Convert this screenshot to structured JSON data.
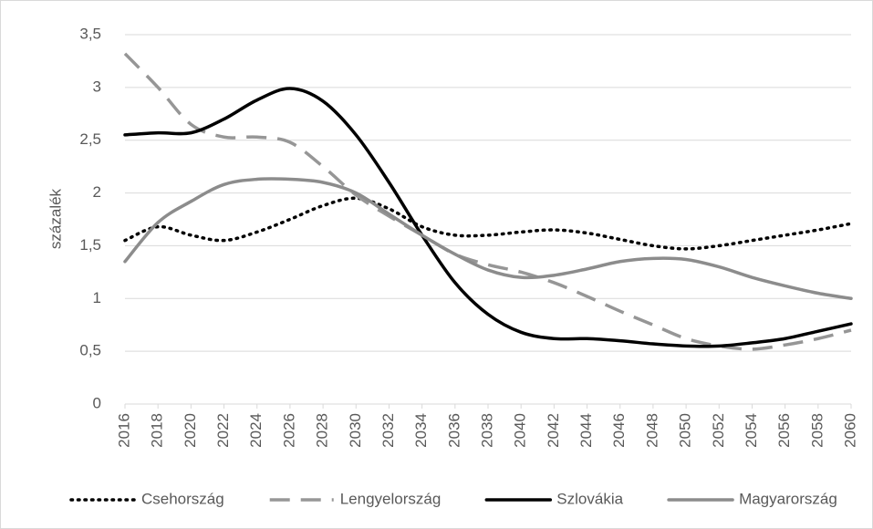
{
  "chart_data": {
    "type": "line",
    "y_label": "százalék",
    "x": [
      2016,
      2018,
      2020,
      2022,
      2024,
      2026,
      2028,
      2030,
      2032,
      2034,
      2036,
      2038,
      2040,
      2042,
      2044,
      2046,
      2048,
      2050,
      2052,
      2054,
      2056,
      2058,
      2060
    ],
    "xlim": [
      2016,
      2060
    ],
    "xticks": [
      2016,
      2018,
      2020,
      2022,
      2024,
      2026,
      2028,
      2030,
      2032,
      2034,
      2036,
      2038,
      2040,
      2042,
      2044,
      2046,
      2048,
      2050,
      2052,
      2054,
      2056,
      2058,
      2060
    ],
    "ylim": [
      0,
      3.5
    ],
    "yticks": [
      0,
      {
        "value": 0.5,
        "label": "0,5"
      },
      1,
      {
        "value": 1.5,
        "label": "1,5"
      },
      2,
      {
        "value": 2.5,
        "label": "2,5"
      },
      3,
      {
        "value": 3.5,
        "label": "3,5"
      }
    ],
    "grid": true,
    "legend": "bottom",
    "series": [
      {
        "name": "Csehország",
        "color": "#000000",
        "style": "dotted",
        "values": [
          1.55,
          1.68,
          1.6,
          1.55,
          1.63,
          1.75,
          1.88,
          1.95,
          1.85,
          1.68,
          1.6,
          1.6,
          1.63,
          1.65,
          1.62,
          1.56,
          1.5,
          1.47,
          1.5,
          1.55,
          1.6,
          1.65,
          1.71
        ]
      },
      {
        "name": "Lengyelország",
        "color": "#969696",
        "style": "dashed",
        "values": [
          3.32,
          3.0,
          2.65,
          2.53,
          2.53,
          2.48,
          2.25,
          1.98,
          1.78,
          1.6,
          1.42,
          1.32,
          1.25,
          1.15,
          1.02,
          0.88,
          0.75,
          0.62,
          0.55,
          0.52,
          0.56,
          0.62,
          0.7
        ]
      },
      {
        "name": "Szlovákia",
        "color": "#000000",
        "style": "solid",
        "values": [
          2.55,
          2.57,
          2.57,
          2.7,
          2.88,
          2.99,
          2.87,
          2.55,
          2.1,
          1.6,
          1.15,
          0.85,
          0.68,
          0.62,
          0.62,
          0.6,
          0.57,
          0.55,
          0.55,
          0.58,
          0.62,
          0.69,
          0.76
        ]
      },
      {
        "name": "Magyarország",
        "color": "#8c8c8c",
        "style": "solid",
        "values": [
          1.35,
          1.72,
          1.92,
          2.08,
          2.13,
          2.13,
          2.1,
          2.0,
          1.8,
          1.6,
          1.42,
          1.27,
          1.2,
          1.22,
          1.28,
          1.35,
          1.38,
          1.37,
          1.3,
          1.2,
          1.12,
          1.05,
          1.0
        ]
      }
    ]
  }
}
